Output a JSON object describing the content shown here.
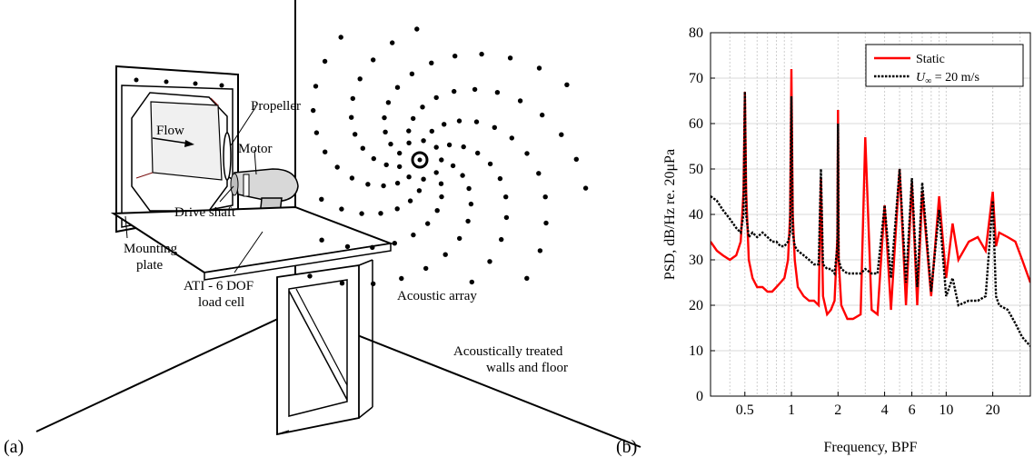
{
  "figure": {
    "panel_a": "(a)",
    "panel_b": "(b)"
  },
  "schematic": {
    "labels": {
      "flow": "Flow",
      "propeller": "Propeller",
      "motor": "Motor",
      "drive_shaft": "Drive shaft",
      "mounting_line1": "Mounting",
      "mounting_line2": "plate",
      "loadcell_line1": "ATI - 6 DOF",
      "loadcell_line2": "load cell",
      "array": "Acoustic array",
      "walls_line1": "Acoustically treated",
      "walls_line2": "walls and floor"
    }
  },
  "chart_data": {
    "type": "line",
    "xscale": "log",
    "xlabel": "Frequency, BPF",
    "ylabel": "PSD, dB/Hz re. 20μPa",
    "xlim": [
      0.3,
      35
    ],
    "ylim": [
      0,
      80
    ],
    "xticks": [
      0.5,
      1,
      2,
      4,
      6,
      10,
      20
    ],
    "xtick_labels": [
      "0.5",
      "1",
      "2",
      "4",
      "6",
      "10",
      "20"
    ],
    "yticks": [
      0,
      10,
      20,
      30,
      40,
      50,
      60,
      70,
      80
    ],
    "ytick_labels": [
      "0",
      "10",
      "20",
      "30",
      "40",
      "50",
      "60",
      "70",
      "80"
    ],
    "grid": true,
    "legend_position": "top-right",
    "series": [
      {
        "name": "Static",
        "color": "#ff0000",
        "style": "solid",
        "x": [
          0.3,
          0.33,
          0.36,
          0.4,
          0.44,
          0.47,
          0.49,
          0.5,
          0.51,
          0.53,
          0.56,
          0.6,
          0.65,
          0.7,
          0.75,
          0.8,
          0.85,
          0.9,
          0.95,
          0.98,
          1.0,
          1.02,
          1.05,
          1.1,
          1.2,
          1.3,
          1.4,
          1.5,
          1.55,
          1.6,
          1.7,
          1.8,
          1.9,
          1.98,
          2.0,
          2.02,
          2.1,
          2.3,
          2.5,
          2.8,
          3.0,
          3.3,
          3.6,
          4.0,
          4.4,
          5.0,
          5.5,
          6.0,
          6.5,
          7.0,
          8.0,
          9.0,
          10.0,
          11.0,
          12.0,
          14.0,
          16.0,
          18.0,
          20.0,
          21.0,
          22.0,
          25.0,
          28.0,
          31.0,
          35.0
        ],
        "y": [
          34,
          32,
          31,
          30,
          31,
          34,
          45,
          67,
          45,
          30,
          26,
          24,
          24,
          23,
          23,
          24,
          25,
          26,
          30,
          40,
          72,
          40,
          30,
          24,
          22,
          21,
          21,
          20,
          48,
          22,
          18,
          19,
          21,
          35,
          63,
          30,
          20,
          17,
          17,
          18,
          57,
          19,
          18,
          42,
          19,
          50,
          20,
          47,
          20,
          45,
          22,
          44,
          26,
          38,
          30,
          34,
          35,
          32,
          45,
          33,
          36,
          35,
          34,
          30,
          25
        ]
      },
      {
        "name": "U∞ = 20 m/s",
        "legend_prefix": "U",
        "legend_sub": "∞",
        "legend_suffix": " = 20 m/s",
        "color": "#000000",
        "style": "dotted",
        "x": [
          0.3,
          0.33,
          0.36,
          0.4,
          0.44,
          0.47,
          0.49,
          0.5,
          0.51,
          0.53,
          0.56,
          0.6,
          0.65,
          0.7,
          0.75,
          0.8,
          0.85,
          0.9,
          0.95,
          0.98,
          1.0,
          1.02,
          1.05,
          1.1,
          1.2,
          1.3,
          1.4,
          1.5,
          1.55,
          1.6,
          1.7,
          1.8,
          1.9,
          1.98,
          2.0,
          2.02,
          2.1,
          2.3,
          2.5,
          2.8,
          3.0,
          3.3,
          3.6,
          4.0,
          4.4,
          5.0,
          5.5,
          6.0,
          6.5,
          7.0,
          8.0,
          9.0,
          10.0,
          11.0,
          12.0,
          14.0,
          16.0,
          18.0,
          20.0,
          21.0,
          22.0,
          25.0,
          28.0,
          31.0,
          35.0
        ],
        "y": [
          44,
          43,
          41,
          39,
          37,
          36,
          40,
          67,
          40,
          35,
          36,
          35,
          36,
          35,
          34,
          34,
          33,
          33,
          34,
          36,
          66,
          36,
          33,
          32,
          31,
          30,
          29,
          29,
          50,
          29,
          28,
          28,
          27,
          33,
          60,
          30,
          28,
          27,
          27,
          27,
          28,
          27,
          27,
          42,
          26,
          50,
          25,
          48,
          24,
          47,
          23,
          41,
          22,
          26,
          20,
          21,
          21,
          22,
          43,
          22,
          20,
          19,
          16,
          13,
          11
        ]
      }
    ]
  }
}
